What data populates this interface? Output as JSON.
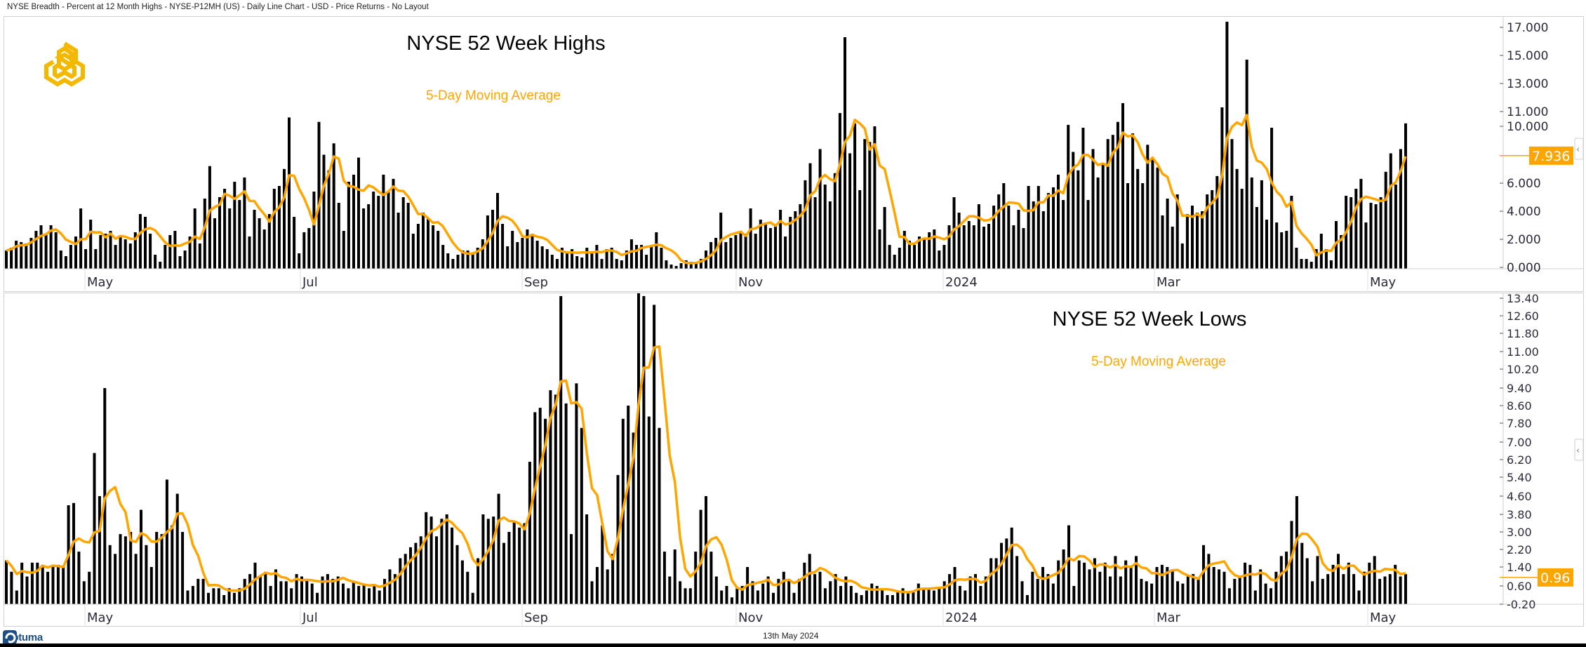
{
  "window_title": "NYSE Breadth - Percent at 12 Month Highs - NYSE-P12MH (US) - Daily Line Chart - USD - Price Returns - No Layout",
  "footer": {
    "date": "13th May 2024",
    "brand": "Optuma"
  },
  "colors": {
    "bar": "#000000",
    "ma": "#FFA500",
    "logo": "#F5B800",
    "brand": "#1d4f86"
  },
  "icons": {
    "logo": "hexagon-knot-logo",
    "collapse": "chevron-left-icon"
  },
  "chart_data": [
    {
      "type": "bar",
      "title": "NYSE 52 Week Highs",
      "legend": "5-Day Moving Average",
      "legend_placement": "top-center",
      "ylabel": "",
      "yaxis_side": "right",
      "yticks": [
        "17.000",
        "15.000",
        "13.000",
        "11.000",
        "10.000",
        "6.000",
        "4.000",
        "2.000",
        "0.000"
      ],
      "ylim": [
        0,
        17.5
      ],
      "last_value_label": "7.936",
      "x_tick_labels": [
        "May",
        "Jul",
        "Sep",
        "Nov",
        "2024",
        "Mar",
        "May"
      ],
      "series": [
        {
          "name": "Percent at 12 Month Highs",
          "kind": "bar",
          "values": [
            1.2,
            1.4,
            1.9,
            1.8,
            1.7,
            2.1,
            2.6,
            3.0,
            2.4,
            3.0,
            2.5,
            1.2,
            0.8,
            1.6,
            2.2,
            4.2,
            1.3,
            3.4,
            1.3,
            2.3,
            2.4,
            2.6,
            1.6,
            2.3,
            2.0,
            1.7,
            2.5,
            3.8,
            3.6,
            2.4,
            0.9,
            0.4,
            1.6,
            2.3,
            2.6,
            0.8,
            1.2,
            2.2,
            4.2,
            1.7,
            4.9,
            7.2,
            3.5,
            5.0,
            5.6,
            4.2,
            6.1,
            4.8,
            6.4,
            2.2,
            4.1,
            3.5,
            2.7,
            3.8,
            5.6,
            5.8,
            7.0,
            10.6,
            3.6,
            1.0,
            2.5,
            2.8,
            5.4,
            10.3,
            8.0,
            6.9,
            8.8,
            4.6,
            2.6,
            6.1,
            6.6,
            7.8,
            4.2,
            4.5,
            5.4,
            5.1,
            6.6,
            5.4,
            6.3,
            3.9,
            5.0,
            4.6,
            2.4,
            3.1,
            3.9,
            3.5,
            3.0,
            2.6,
            1.6,
            1.0,
            0.6,
            0.9,
            1.2,
            1.2,
            1.0,
            1.4,
            2.0,
            3.7,
            4.1,
            5.3,
            3.1,
            1.5,
            2.6,
            1.8,
            2.1,
            2.7,
            2.4,
            1.9,
            1.5,
            1.3,
            0.9,
            0.6,
            1.4,
            1.1,
            1.3,
            0.8,
            0.7,
            1.4,
            1.1,
            1.6,
            0.6,
            1.3,
            1.4,
            0.6,
            0.5,
            1.2,
            2.0,
            1.6,
            1.6,
            0.9,
            1.5,
            2.5,
            1.4,
            0.5,
            0.2,
            0.1,
            0.3,
            0.5,
            0.4,
            0.3,
            0.6,
            1.2,
            1.8,
            2.1,
            3.9,
            1.8,
            2.1,
            2.3,
            2.6,
            2.4,
            4.2,
            2.4,
            3.4,
            3.2,
            2.8,
            3.0,
            4.1,
            2.2,
            3.6,
            4.0,
            4.5,
            6.2,
            7.4,
            5.0,
            8.4,
            5.9,
            4.7,
            6.7,
            10.9,
            16.3,
            8.1,
            10.2,
            5.5,
            9.1,
            8.9,
            10.0,
            2.7,
            4.3,
            1.6,
            0.9,
            1.4,
            2.6,
            1.9,
            1.6,
            2.2,
            2.0,
            2.5,
            2.7,
            1.2,
            1.6,
            3.0,
            5.0,
            3.9,
            3.0,
            3.3,
            3.0,
            4.5,
            2.9,
            3.1,
            4.4,
            5.2,
            6.0,
            4.4,
            3.0,
            4.1,
            2.8,
            5.8,
            4.7,
            5.8,
            4.0,
            5.3,
            5.7,
            6.6,
            4.8,
            10.1,
            8.2,
            6.9,
            9.9,
            4.8,
            8.4,
            6.4,
            7.4,
            9.1,
            9.4,
            10.3,
            11.6,
            6.0,
            9.5,
            7.0,
            6.0,
            8.7,
            7.8,
            7.1,
            3.7,
            4.9,
            2.9,
            5.2,
            1.7,
            3.8,
            4.4,
            3.9,
            4.0,
            5.2,
            5.5,
            6.5,
            11.3,
            17.4,
            9.1,
            7.0,
            5.6,
            14.7,
            6.4,
            4.3,
            6.2,
            3.4,
            9.9,
            3.2,
            2.5,
            2.6,
            5.1,
            1.4,
            0.6,
            0.6,
            0.4,
            1.3,
            2.4,
            1.3,
            0.5,
            3.3,
            2.3,
            5.1,
            5.0,
            5.6,
            6.3,
            3.2,
            4.6,
            4.5,
            5.0,
            6.8,
            8.1,
            5.9,
            8.4,
            10.2
          ]
        },
        {
          "name": "5-Day Moving Average",
          "kind": "line",
          "last": 7.936
        }
      ]
    },
    {
      "type": "bar",
      "title": "NYSE 52 Week Lows",
      "legend": "5-Day Moving Average",
      "legend_placement": "top-center",
      "ylabel": "",
      "yaxis_side": "right",
      "yticks": [
        "13.40",
        "12.60",
        "11.80",
        "11.00",
        "10.20",
        "9.40",
        "8.60",
        "7.80",
        "7.00",
        "6.20",
        "5.40",
        "4.60",
        "3.80",
        "3.00",
        "2.20",
        "1.40",
        "0.60",
        "-0.20"
      ],
      "ylim": [
        -0.2,
        13.4
      ],
      "last_value_label": "0.96",
      "x_tick_labels": [
        "May",
        "Jul",
        "Sep",
        "Nov",
        "2024",
        "Mar",
        "May"
      ],
      "series": [
        {
          "name": "Percent at 12 Month Lows",
          "kind": "bar",
          "values": [
            1.7,
            1.2,
            0.4,
            1.6,
            1.0,
            1.6,
            1.6,
            1.5,
            1.2,
            1.4,
            1.5,
            1.4,
            4.2,
            4.3,
            2.1,
            0.8,
            1.2,
            6.5,
            4.6,
            9.4,
            2.4,
            2.0,
            2.9,
            2.8,
            3.0,
            2.0,
            4.0,
            2.4,
            1.4,
            3.0,
            2.9,
            5.3,
            3.3,
            4.7,
            3.0,
            0.4,
            0.6,
            0.9,
            0.9,
            0.3,
            0.5,
            0.5,
            0.2,
            0.5,
            0.3,
            0.5,
            0.9,
            1.1,
            1.6,
            1.0,
            1.2,
            0.6,
            1.3,
            0.8,
            0.8,
            0.5,
            1.1,
            1.0,
            0.9,
            0.7,
            0.3,
            1.0,
            1.1,
            0.9,
            1.0,
            0.7,
            0.5,
            0.8,
            0.6,
            0.7,
            0.5,
            0.6,
            0.4,
            0.9,
            1.3,
            1.1,
            1.8,
            2.0,
            2.3,
            2.5,
            2.8,
            3.9,
            3.7,
            2.8,
            3.6,
            3.8,
            3.2,
            2.4,
            1.7,
            1.2,
            0.3,
            1.8,
            3.8,
            3.6,
            3.7,
            4.7,
            2.5,
            3.0,
            3.5,
            3.2,
            3.4,
            6.1,
            8.3,
            8.5,
            8.0,
            9.3,
            9.1,
            13.5,
            8.7,
            2.9,
            9.6,
            7.6,
            3.8,
            0.8,
            1.4,
            3.3,
            1.3,
            2.0,
            5.5,
            8.0,
            8.6,
            7.4,
            13.8,
            13.5,
            8.1,
            13.1,
            7.6,
            2.1,
            1.0,
            2.2,
            0.8,
            0.5,
            0.5,
            2.1,
            4.0,
            4.6,
            2.1,
            1.0,
            0.4,
            0.6,
            0.1,
            0.5,
            0.6,
            1.4,
            0.8,
            0.4,
            0.7,
            1.0,
            0.3,
            0.9,
            1.2,
            0.9,
            0.3,
            0.9,
            1.6,
            2.0,
            1.1,
            1.2,
            0.5,
            0.8,
            1.1,
            0.6,
            1.0,
            0.6,
            0.3,
            0.2,
            0.4,
            0.7,
            0.6,
            0.4,
            0.2,
            0.2,
            0.4,
            0.5,
            0.3,
            0.4,
            0.7,
            0.5,
            0.5,
            0.4,
            0.5,
            0.8,
            1.1,
            1.4,
            0.6,
            0.4,
            1.0,
            1.1,
            0.6,
            1.0,
            1.8,
            1.8,
            2.5,
            2.7,
            3.2,
            1.9,
            0.8,
            0.2,
            1.2,
            0.9,
            1.4,
            1.1,
            0.7,
            1.7,
            2.2,
            3.3,
            0.6,
            1.7,
            1.6,
            1.3,
            1.8,
            1.2,
            1.6,
            1.0,
            1.9,
            1.0,
            1.7,
            1.4,
            1.9,
            0.9,
            0.8,
            0.7,
            1.4,
            1.5,
            1.4,
            1.3,
            0.8,
            0.7,
            1.0,
            1.1,
            0.9,
            2.4,
            2.0,
            1.4,
            1.3,
            1.2,
            0.5,
            0.9,
            1.0,
            1.6,
            1.5,
            0.4,
            1.3,
            0.7,
            0.5,
            1.2,
            1.9,
            2.1,
            3.5,
            4.6,
            2.5,
            1.8,
            0.8,
            1.9,
            0.9,
            1.1,
            1.5,
            2.0,
            1.1,
            1.6,
            1.1,
            0.4,
            1.2,
            1.6,
            1.9,
            0.9,
            1.0,
            1.1,
            1.5,
            1.0,
            1.1
          ]
        },
        {
          "name": "5-Day Moving Average",
          "kind": "line",
          "last": 0.96
        }
      ]
    }
  ]
}
